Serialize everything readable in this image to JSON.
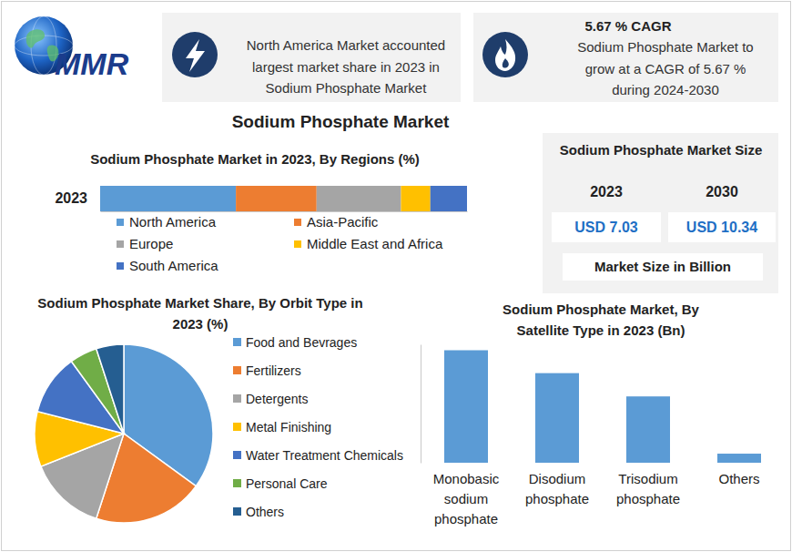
{
  "logo": "MMR",
  "info_boxes": [
    {
      "lines": [
        "North America Market accounted",
        "largest market share in 2023 in",
        "Sodium Phosphate Market"
      ]
    },
    {
      "heading": "5.67 % CAGR",
      "lines": [
        "Sodium Phosphate Market to",
        "grow at a CAGR of 5.67 %",
        "during 2024-2030"
      ]
    }
  ],
  "title": "Sodium Phosphate Market",
  "market_size": {
    "title": "Sodium Phosphate Market Size",
    "years": [
      "2023",
      "2030"
    ],
    "values": [
      "USD 7.03",
      "USD 10.34"
    ],
    "caption": "Market Size in Billion"
  },
  "chart_data": [
    {
      "type": "bar",
      "title": "Sodium Phosphate Market in 2023, By Regions (%)",
      "orientation": "horizontal",
      "stacked": true,
      "categories": [
        "2023"
      ],
      "series": [
        {
          "name": "North America",
          "color": "#5b9bd5",
          "values": [
            37
          ]
        },
        {
          "name": "Asia-Pacific",
          "color": "#ed7d31",
          "values": [
            22
          ]
        },
        {
          "name": "Europe",
          "color": "#a5a5a5",
          "values": [
            23
          ]
        },
        {
          "name": "Middle East and Africa",
          "color": "#ffc000",
          "values": [
            8
          ]
        },
        {
          "name": "South America",
          "color": "#4472c4",
          "values": [
            10
          ]
        }
      ],
      "xlim": [
        0,
        100
      ],
      "tick_labels": "y",
      "legend": "bottom"
    },
    {
      "type": "pie",
      "title": "Sodium Phosphate Market Share, By Orbit Type in 2023 (%)",
      "categories": [
        "Food and Bevrages",
        "Fertilizers",
        "Detergents",
        "Metal Finishing",
        "Water Treatment Chemicals",
        "Personal Care",
        "Others"
      ],
      "values": [
        35,
        20,
        14,
        10,
        11,
        5,
        5
      ],
      "colors": [
        "#5b9bd5",
        "#ed7d31",
        "#a5a5a5",
        "#ffc000",
        "#4472c4",
        "#70ad47",
        "#255e91"
      ],
      "legend": "right"
    },
    {
      "type": "bar",
      "title": "Sodium Phosphate Market, By Satellite Type in 2023 (Bn)",
      "categories": [
        "Monobasic sodium phosphate",
        "Disodium phosphate",
        "Trisodium phosphate",
        "Others"
      ],
      "values": [
        2.85,
        2.27,
        1.68,
        0.23
      ],
      "color": "#5b9bd5",
      "ylim": [
        0,
        3
      ],
      "tick_labels": "x"
    }
  ]
}
